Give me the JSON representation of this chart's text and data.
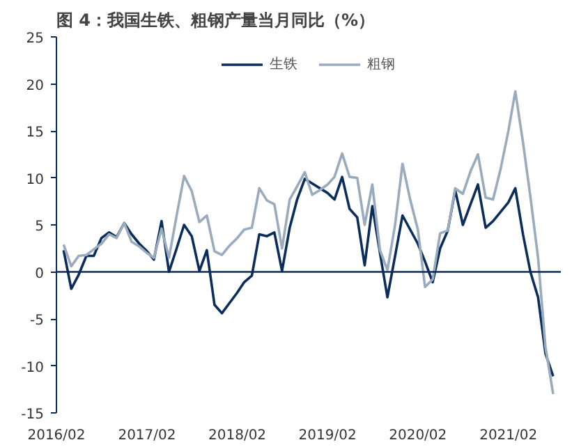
{
  "chart_data": {
    "type": "line",
    "title": "图 4：我国生铁、粗钢产量当月同比（%）",
    "x": [
      "2016-03",
      "2016-04",
      "2016-05",
      "2016-06",
      "2016-07",
      "2016-08",
      "2016-09",
      "2016-10",
      "2016-11",
      "2016-12",
      "2017-01",
      "2017-02",
      "2017-03",
      "2017-04",
      "2017-05",
      "2017-06",
      "2017-07",
      "2017-08",
      "2017-09",
      "2017-10",
      "2017-11",
      "2017-12",
      "2018-01",
      "2018-02",
      "2018-03",
      "2018-04",
      "2018-05",
      "2018-06",
      "2018-07",
      "2018-08",
      "2018-09",
      "2018-10",
      "2018-11",
      "2018-12",
      "2019-01",
      "2019-02",
      "2019-03",
      "2019-04",
      "2019-05",
      "2019-06",
      "2019-07",
      "2019-08",
      "2019-09",
      "2019-10",
      "2019-11",
      "2019-12",
      "2020-01",
      "2020-02",
      "2020-03",
      "2020-04",
      "2020-05",
      "2020-06",
      "2020-07",
      "2020-08",
      "2020-09",
      "2020-10",
      "2020-11",
      "2020-12",
      "2021-01",
      "2021-02",
      "2021-03",
      "2021-04",
      "2021-05",
      "2021-06",
      "2021-07",
      "2021-08"
    ],
    "series": [
      {
        "name": "生铁",
        "color": "#0b2d5b",
        "values": [
          2.3,
          -1.8,
          -0.3,
          1.7,
          1.7,
          3.6,
          4.2,
          3.7,
          5.2,
          4.0,
          3.0,
          2.2,
          1.3,
          5.4,
          0.0,
          2.5,
          5.0,
          3.8,
          0.1,
          2.3,
          -3.5,
          -4.4,
          -3.3,
          -2.2,
          -1.1,
          -0.4,
          4.0,
          3.8,
          4.2,
          0.1,
          4.7,
          7.7,
          9.9,
          9.4,
          8.9,
          8.4,
          7.7,
          10.1,
          6.7,
          5.8,
          0.7,
          7.0,
          2.0,
          -2.7,
          1.7,
          6.0,
          4.5,
          3.0,
          1.1,
          -1.1,
          2.5,
          4.4,
          8.7,
          5.0,
          7.2,
          9.3,
          4.7,
          5.4,
          6.4,
          7.4,
          8.9,
          4.0,
          0.0,
          -2.7,
          -8.7,
          -11.1
        ]
      },
      {
        "name": "粗钢",
        "color": "#9aabbd",
        "values": [
          2.9,
          0.6,
          1.7,
          1.8,
          2.4,
          3.0,
          4.0,
          3.6,
          5.2,
          3.2,
          2.7,
          2.0,
          1.5,
          4.6,
          1.5,
          6.0,
          10.2,
          8.6,
          5.3,
          6.0,
          2.2,
          1.8,
          2.8,
          3.6,
          4.5,
          4.7,
          8.9,
          7.6,
          7.2,
          2.5,
          7.7,
          9.1,
          10.6,
          8.2,
          8.7,
          9.3,
          10.1,
          12.6,
          10.1,
          10.0,
          5.0,
          9.3,
          2.3,
          0.2,
          5.0,
          11.5,
          7.7,
          4.5,
          -1.6,
          -0.8,
          4.1,
          4.4,
          8.9,
          8.3,
          10.7,
          12.5,
          7.9,
          7.7,
          11.0,
          15.0,
          19.2,
          13.8,
          8.0,
          1.5,
          -8.0,
          -13.0
        ]
      }
    ],
    "xlim": [
      "2016-02",
      "2021-09"
    ],
    "xticks": [
      {
        "value": "2016-02",
        "label": "2016/02"
      },
      {
        "value": "2017-02",
        "label": "2017/02"
      },
      {
        "value": "2018-02",
        "label": "2018/02"
      },
      {
        "value": "2019-02",
        "label": "2019/02"
      },
      {
        "value": "2020-02",
        "label": "2020/02"
      },
      {
        "value": "2021-02",
        "label": "2021/02"
      }
    ],
    "ylim": [
      -15,
      25
    ],
    "yticks": [
      -15,
      -10,
      -5,
      0,
      5,
      10,
      15,
      20,
      25
    ],
    "ref_lines": [
      {
        "axis": "y",
        "value": 0,
        "color": "#0b2d5b"
      }
    ],
    "legend": "top",
    "grid": false,
    "line_style": "solid",
    "marker": "none"
  }
}
